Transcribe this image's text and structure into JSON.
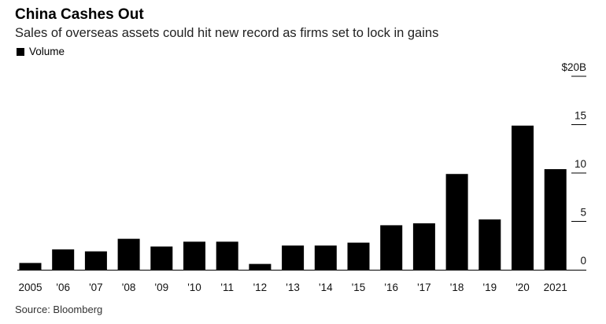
{
  "title": "China Cashes Out",
  "subtitle": "Sales of overseas assets could hit new record as firms set to lock in gains",
  "source": "Source: Bloomberg",
  "colors": {
    "bar": "#000000",
    "axis": "#000000",
    "grid": "#000000"
  },
  "chart_data": {
    "type": "bar",
    "categories": [
      "2005",
      "'06",
      "'07",
      "'08",
      "'09",
      "'10",
      "'11",
      "'12",
      "'13",
      "'14",
      "'15",
      "'16",
      "'17",
      "'18",
      "'19",
      "'20",
      "2021"
    ],
    "series": [
      {
        "name": "Volume",
        "values": [
          0.7,
          2.1,
          1.9,
          3.2,
          2.4,
          2.9,
          2.9,
          0.6,
          2.5,
          2.5,
          2.8,
          4.6,
          4.8,
          9.9,
          5.2,
          14.9,
          10.4
        ]
      }
    ],
    "y_ticks": [
      0,
      5,
      10,
      15,
      20
    ],
    "y_tick_labels": [
      "0",
      "5",
      "10",
      "15",
      "$20B"
    ],
    "ylim": [
      0,
      20
    ],
    "legend_position": "top-left",
    "grid": false
  }
}
